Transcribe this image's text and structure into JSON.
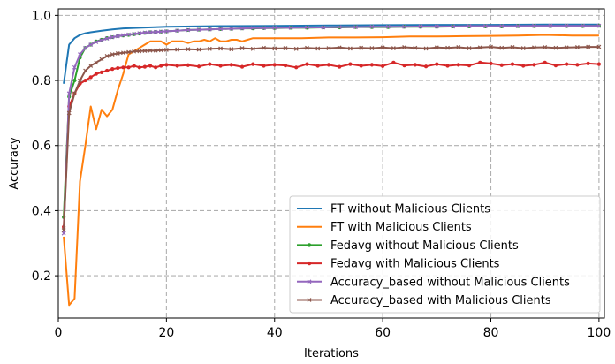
{
  "chart_data": {
    "type": "line",
    "title": "",
    "xlabel": "Iterations",
    "ylabel": "Accuracy",
    "xlim": [
      0,
      101
    ],
    "ylim": [
      0.07,
      1.02
    ],
    "xticks": [
      "0",
      "20",
      "40",
      "60",
      "80",
      "100"
    ],
    "yticks": [
      "0.2",
      "0.4",
      "0.6",
      "0.8",
      "1.0"
    ],
    "grid": true,
    "legend_position": "lower-right",
    "series": [
      {
        "name": "FT without Malicious Clients",
        "color": "#1f77b4",
        "marker": "none",
        "x": [
          1,
          2,
          3,
          4,
          5,
          6,
          8,
          10,
          12,
          15,
          20,
          25,
          30,
          40,
          50,
          60,
          70,
          80,
          90,
          100
        ],
        "values": [
          0.79,
          0.91,
          0.93,
          0.94,
          0.945,
          0.948,
          0.953,
          0.957,
          0.96,
          0.962,
          0.965,
          0.966,
          0.967,
          0.968,
          0.969,
          0.97,
          0.971,
          0.971,
          0.972,
          0.972
        ]
      },
      {
        "name": "FT with Malicious Clients",
        "color": "#ff7f0e",
        "marker": "none",
        "x": [
          1,
          2,
          3,
          4,
          5,
          6,
          7,
          8,
          9,
          10,
          11,
          12,
          13,
          14,
          15,
          16,
          17,
          18,
          19,
          20,
          21,
          22,
          23,
          24,
          25,
          26,
          27,
          28,
          29,
          30,
          31,
          32,
          33,
          34,
          35,
          36,
          37,
          38,
          39,
          40,
          45,
          50,
          55,
          60,
          65,
          70,
          75,
          80,
          85,
          90,
          95,
          100
        ],
        "values": [
          0.32,
          0.11,
          0.13,
          0.49,
          0.6,
          0.72,
          0.65,
          0.71,
          0.69,
          0.71,
          0.77,
          0.82,
          0.88,
          0.89,
          0.9,
          0.91,
          0.92,
          0.92,
          0.92,
          0.91,
          0.92,
          0.92,
          0.92,
          0.915,
          0.92,
          0.92,
          0.925,
          0.92,
          0.93,
          0.92,
          0.92,
          0.925,
          0.925,
          0.92,
          0.925,
          0.93,
          0.93,
          0.93,
          0.93,
          0.93,
          0.93,
          0.932,
          0.932,
          0.933,
          0.935,
          0.935,
          0.936,
          0.937,
          0.938,
          0.94,
          0.938,
          0.938
        ]
      },
      {
        "name": "Fedavg without Malicious Clients",
        "color": "#2ca02c",
        "marker": "dot",
        "x": [
          1,
          2,
          3,
          4,
          5,
          6,
          7,
          8,
          9,
          10,
          11,
          12,
          13,
          14,
          15,
          16,
          17,
          18,
          19,
          20,
          22,
          24,
          26,
          28,
          30,
          32,
          34,
          36,
          38,
          40,
          43,
          46,
          49,
          52,
          55,
          58,
          61,
          64,
          67,
          70,
          73,
          76,
          79,
          82,
          85,
          88,
          91,
          94,
          97,
          100
        ],
        "values": [
          0.38,
          0.75,
          0.8,
          0.87,
          0.9,
          0.91,
          0.92,
          0.925,
          0.93,
          0.933,
          0.936,
          0.938,
          0.94,
          0.942,
          0.944,
          0.946,
          0.948,
          0.949,
          0.95,
          0.951,
          0.953,
          0.955,
          0.956,
          0.957,
          0.958,
          0.959,
          0.96,
          0.96,
          0.961,
          0.961,
          0.962,
          0.962,
          0.963,
          0.963,
          0.964,
          0.964,
          0.964,
          0.965,
          0.965,
          0.965,
          0.966,
          0.966,
          0.966,
          0.966,
          0.967,
          0.967,
          0.967,
          0.967,
          0.967,
          0.968
        ]
      },
      {
        "name": "Fedavg with Malicious Clients",
        "color": "#d62728",
        "marker": "dot",
        "x": [
          1,
          2,
          3,
          4,
          5,
          6,
          7,
          8,
          9,
          10,
          11,
          12,
          13,
          14,
          15,
          16,
          17,
          18,
          19,
          20,
          22,
          24,
          26,
          28,
          30,
          32,
          34,
          36,
          38,
          40,
          42,
          44,
          46,
          48,
          50,
          52,
          54,
          56,
          58,
          60,
          62,
          64,
          66,
          68,
          70,
          72,
          74,
          76,
          78,
          80,
          82,
          84,
          86,
          88,
          90,
          92,
          94,
          96,
          98,
          100
        ],
        "values": [
          0.35,
          0.72,
          0.76,
          0.79,
          0.8,
          0.81,
          0.82,
          0.825,
          0.83,
          0.835,
          0.838,
          0.84,
          0.84,
          0.845,
          0.84,
          0.842,
          0.845,
          0.84,
          0.845,
          0.848,
          0.845,
          0.847,
          0.843,
          0.85,
          0.845,
          0.848,
          0.842,
          0.85,
          0.845,
          0.848,
          0.846,
          0.84,
          0.85,
          0.845,
          0.848,
          0.842,
          0.85,
          0.845,
          0.848,
          0.844,
          0.855,
          0.846,
          0.848,
          0.843,
          0.85,
          0.845,
          0.848,
          0.846,
          0.855,
          0.852,
          0.847,
          0.85,
          0.845,
          0.848,
          0.855,
          0.846,
          0.85,
          0.848,
          0.852,
          0.85
        ]
      },
      {
        "name": "Accuracy_based without Malicious Clients",
        "color": "#9467bd",
        "marker": "cross",
        "x": [
          1,
          2,
          3,
          4,
          5,
          6,
          7,
          8,
          9,
          10,
          11,
          12,
          13,
          14,
          15,
          16,
          17,
          18,
          19,
          20,
          22,
          24,
          26,
          28,
          30,
          32,
          34,
          36,
          38,
          40,
          43,
          46,
          49,
          52,
          55,
          58,
          61,
          64,
          67,
          70,
          73,
          76,
          79,
          82,
          85,
          88,
          91,
          94,
          97,
          100
        ],
        "values": [
          0.33,
          0.76,
          0.84,
          0.88,
          0.9,
          0.91,
          0.918,
          0.924,
          0.929,
          0.933,
          0.936,
          0.939,
          0.941,
          0.943,
          0.945,
          0.947,
          0.948,
          0.949,
          0.95,
          0.951,
          0.953,
          0.955,
          0.956,
          0.957,
          0.958,
          0.959,
          0.96,
          0.961,
          0.961,
          0.962,
          0.962,
          0.963,
          0.963,
          0.964,
          0.964,
          0.965,
          0.965,
          0.965,
          0.966,
          0.966,
          0.966,
          0.967,
          0.967,
          0.967,
          0.967,
          0.968,
          0.968,
          0.968,
          0.968,
          0.968
        ]
      },
      {
        "name": "Accuracy_based with Malicious Clients",
        "color": "#8c564b",
        "marker": "cross",
        "x": [
          1,
          2,
          3,
          4,
          5,
          6,
          7,
          8,
          9,
          10,
          11,
          12,
          13,
          14,
          15,
          16,
          17,
          18,
          19,
          20,
          22,
          24,
          26,
          28,
          30,
          32,
          34,
          36,
          38,
          40,
          42,
          44,
          46,
          48,
          50,
          52,
          54,
          56,
          58,
          60,
          62,
          64,
          66,
          68,
          70,
          72,
          74,
          76,
          78,
          80,
          82,
          84,
          86,
          88,
          90,
          92,
          94,
          96,
          98,
          100
        ],
        "values": [
          0.34,
          0.7,
          0.76,
          0.8,
          0.83,
          0.845,
          0.855,
          0.865,
          0.875,
          0.88,
          0.883,
          0.885,
          0.887,
          0.889,
          0.89,
          0.891,
          0.892,
          0.892,
          0.893,
          0.894,
          0.895,
          0.896,
          0.895,
          0.897,
          0.898,
          0.896,
          0.899,
          0.897,
          0.9,
          0.898,
          0.899,
          0.897,
          0.9,
          0.898,
          0.899,
          0.901,
          0.898,
          0.9,
          0.899,
          0.901,
          0.899,
          0.902,
          0.9,
          0.898,
          0.901,
          0.9,
          0.902,
          0.899,
          0.901,
          0.903,
          0.9,
          0.902,
          0.899,
          0.901,
          0.902,
          0.9,
          0.901,
          0.902,
          0.903,
          0.903
        ]
      }
    ]
  }
}
